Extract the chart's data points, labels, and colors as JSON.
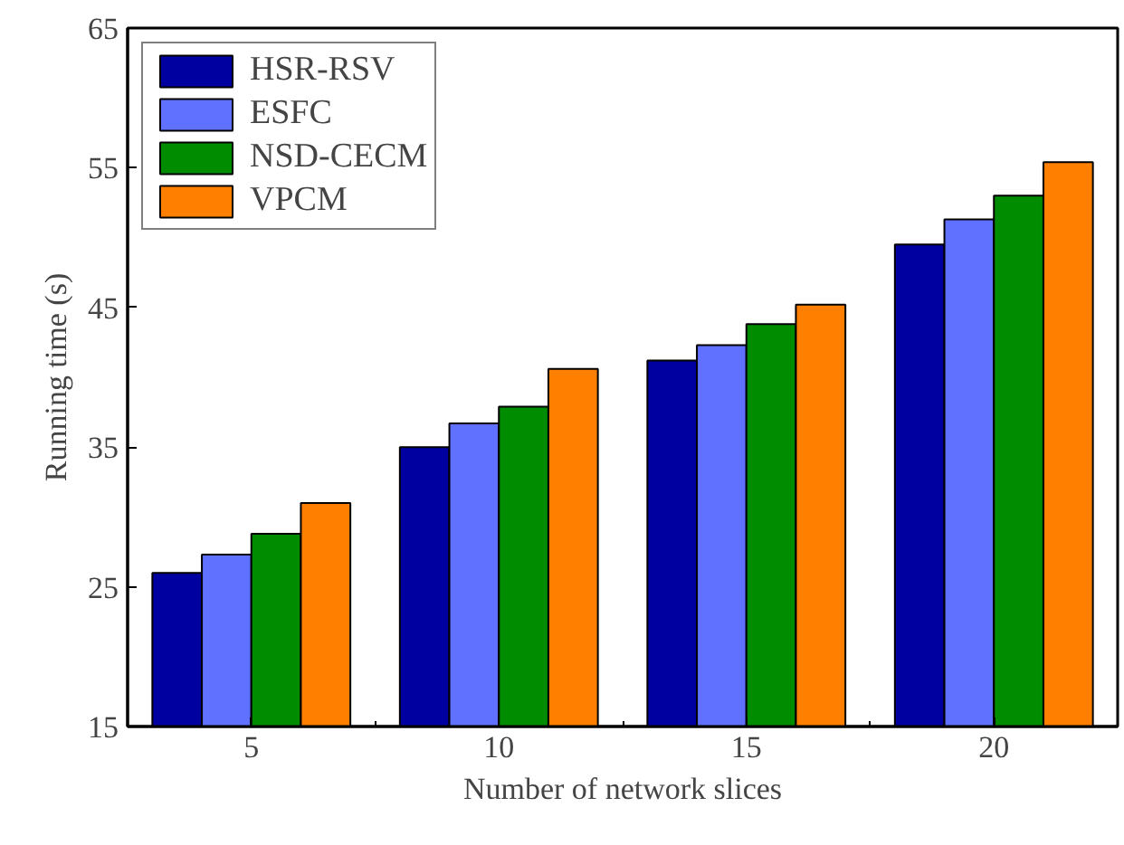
{
  "chart_data": {
    "type": "bar",
    "xlabel": "Number of network slices",
    "ylabel": "Running time (s)",
    "categories": [
      "5",
      "10",
      "15",
      "20"
    ],
    "series": [
      {
        "name": "HSR-RSV",
        "color": "#0000a0",
        "values": [
          26.0,
          35.0,
          41.2,
          49.5
        ]
      },
      {
        "name": "ESFC",
        "color": "#6070ff",
        "values": [
          27.3,
          36.7,
          42.3,
          51.3
        ]
      },
      {
        "name": "NSD-CECM",
        "color": "#008c00",
        "values": [
          28.8,
          37.9,
          43.8,
          53.0
        ]
      },
      {
        "name": "VPCM",
        "color": "#ff8000",
        "values": [
          31.0,
          40.6,
          45.2,
          55.4
        ]
      }
    ],
    "ylim": [
      15,
      65
    ],
    "yticks": [
      15,
      25,
      35,
      45,
      55,
      65
    ],
    "grid": false,
    "legend": "top left"
  }
}
